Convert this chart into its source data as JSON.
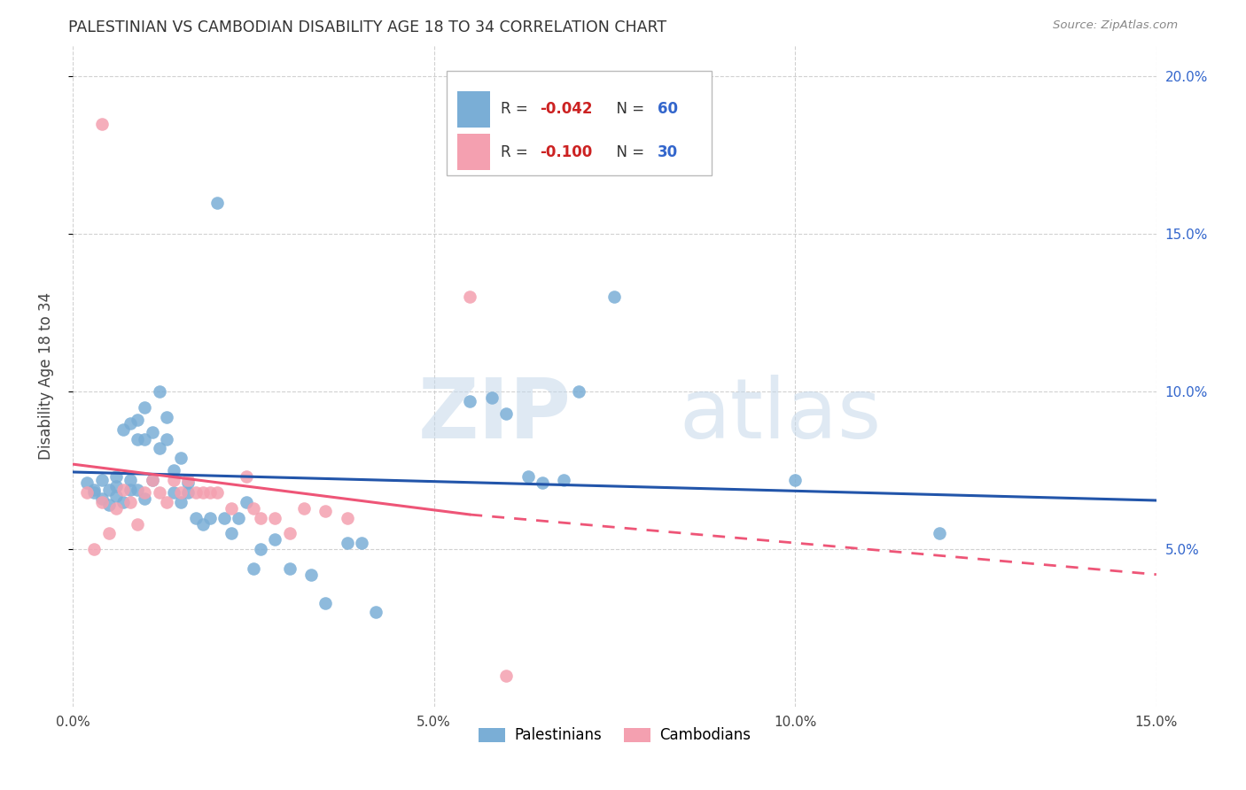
{
  "title": "PALESTINIAN VS CAMBODIAN DISABILITY AGE 18 TO 34 CORRELATION CHART",
  "source": "Source: ZipAtlas.com",
  "ylabel": "Disability Age 18 to 34",
  "xlim": [
    0.0,
    0.15
  ],
  "ylim": [
    0.0,
    0.21
  ],
  "xticks": [
    0.0,
    0.05,
    0.1,
    0.15
  ],
  "xticklabels": [
    "0.0%",
    "5.0%",
    "10.0%",
    "15.0%"
  ],
  "yticks": [
    0.05,
    0.1,
    0.15,
    0.2
  ],
  "yticklabels_right": [
    "5.0%",
    "10.0%",
    "15.0%",
    "20.0%"
  ],
  "blue_dot_color": "#7aaed6",
  "pink_dot_color": "#f4a0b0",
  "blue_line_color": "#2255aa",
  "pink_line_color": "#ee5577",
  "blue_line_y0": 0.0745,
  "blue_line_y1": 0.0655,
  "pink_line_solid_x0": 0.0,
  "pink_line_solid_x1": 0.055,
  "pink_line_solid_y0": 0.077,
  "pink_line_solid_y1": 0.061,
  "pink_line_dash_x0": 0.055,
  "pink_line_dash_x1": 0.15,
  "pink_line_dash_y0": 0.061,
  "pink_line_dash_y1": 0.042,
  "legend_r1": "-0.042",
  "legend_n1": "60",
  "legend_r2": "-0.100",
  "legend_n2": "30",
  "palestinians_x": [
    0.002,
    0.003,
    0.003,
    0.004,
    0.004,
    0.005,
    0.005,
    0.006,
    0.006,
    0.006,
    0.007,
    0.007,
    0.008,
    0.008,
    0.008,
    0.009,
    0.009,
    0.009,
    0.01,
    0.01,
    0.01,
    0.011,
    0.011,
    0.012,
    0.012,
    0.013,
    0.013,
    0.014,
    0.014,
    0.015,
    0.015,
    0.016,
    0.016,
    0.017,
    0.018,
    0.019,
    0.02,
    0.021,
    0.022,
    0.023,
    0.024,
    0.025,
    0.026,
    0.028,
    0.03,
    0.033,
    0.035,
    0.038,
    0.04,
    0.042,
    0.055,
    0.058,
    0.06,
    0.063,
    0.065,
    0.068,
    0.07,
    0.075,
    0.1,
    0.12
  ],
  "palestinians_y": [
    0.071,
    0.069,
    0.068,
    0.066,
    0.072,
    0.064,
    0.069,
    0.073,
    0.067,
    0.07,
    0.065,
    0.088,
    0.072,
    0.09,
    0.069,
    0.091,
    0.085,
    0.069,
    0.095,
    0.085,
    0.066,
    0.072,
    0.087,
    0.082,
    0.1,
    0.085,
    0.092,
    0.068,
    0.075,
    0.079,
    0.065,
    0.071,
    0.068,
    0.06,
    0.058,
    0.06,
    0.16,
    0.06,
    0.055,
    0.06,
    0.065,
    0.044,
    0.05,
    0.053,
    0.044,
    0.042,
    0.033,
    0.052,
    0.052,
    0.03,
    0.097,
    0.098,
    0.093,
    0.073,
    0.071,
    0.072,
    0.1,
    0.13,
    0.072,
    0.055
  ],
  "cambodians_x": [
    0.002,
    0.003,
    0.004,
    0.005,
    0.006,
    0.007,
    0.008,
    0.009,
    0.01,
    0.011,
    0.012,
    0.013,
    0.014,
    0.015,
    0.016,
    0.017,
    0.018,
    0.019,
    0.02,
    0.022,
    0.024,
    0.025,
    0.026,
    0.028,
    0.03,
    0.032,
    0.035,
    0.038,
    0.055,
    0.06
  ],
  "cambodians_y": [
    0.068,
    0.05,
    0.065,
    0.055,
    0.063,
    0.069,
    0.065,
    0.058,
    0.068,
    0.072,
    0.068,
    0.065,
    0.072,
    0.068,
    0.072,
    0.068,
    0.068,
    0.068,
    0.068,
    0.063,
    0.073,
    0.063,
    0.06,
    0.06,
    0.055,
    0.063,
    0.062,
    0.06,
    0.13,
    0.01
  ]
}
